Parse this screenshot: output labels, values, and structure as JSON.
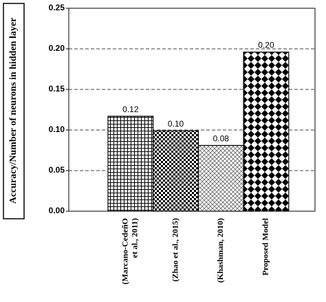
{
  "chart_data": {
    "type": "bar",
    "y_label": "Accuracy/Number of neurons in hidden layer",
    "categories": [
      [
        "(Marcano-CedeñO",
        "et al., 2011)"
      ],
      [
        "(Zhao et al., 2015)"
      ],
      [
        "(Khashman, 2010)"
      ],
      [
        "Proposed Model"
      ]
    ],
    "values": [
      0.117,
      0.099,
      0.081,
      0.196
    ],
    "value_labels": [
      "0.12",
      "0.10",
      "0.08",
      "0.20"
    ],
    "ylim": [
      0,
      0.25
    ],
    "yticks": [
      {
        "value": 0,
        "label": "0.00"
      },
      {
        "value": 0.05,
        "label": "0.05"
      },
      {
        "value": 0.1,
        "label": "0.10"
      },
      {
        "value": 0.15,
        "label": "0.15"
      },
      {
        "value": 0.2,
        "label": "0.20"
      },
      {
        "value": 0.25,
        "label": "0.25"
      }
    ],
    "grid": true
  }
}
